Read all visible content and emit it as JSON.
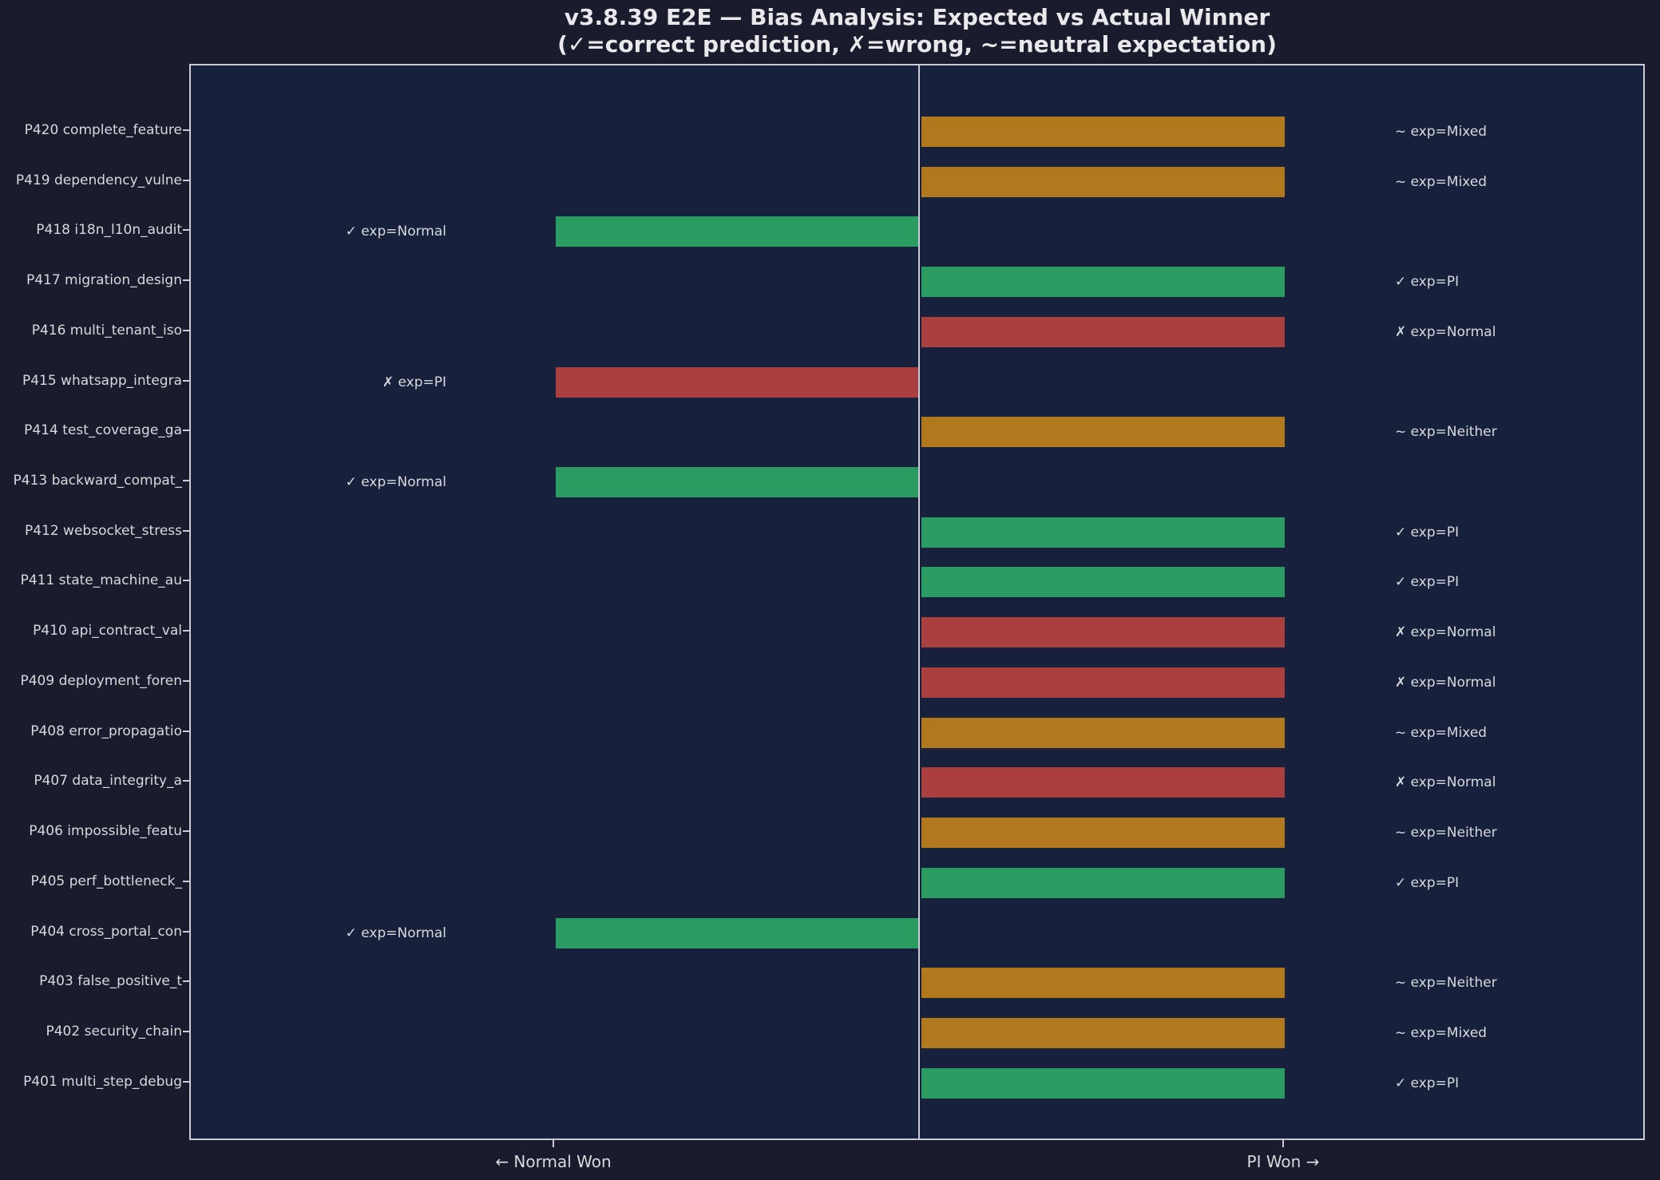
{
  "title": "v3.8.39 E2E — Bias Analysis: Expected vs Actual Winner",
  "subtitle": "(✓=correct prediction, ✗=wrong, ~=neutral expectation)",
  "colors": {
    "page_bg": "#1a1b2c",
    "plot_bg": "#18213c",
    "spine": "#c9ccd4",
    "text": "#d7d9de",
    "title_text": "#e9e9ec",
    "correct": "#2a9b61",
    "wrong": "#a93f3f",
    "neutral": "#b2781e"
  },
  "legend_note": {
    "correct_mark": "✓",
    "wrong_mark": "✗",
    "neutral_mark": "~"
  },
  "chart_data": {
    "type": "bar",
    "orientation": "horizontal-diverging",
    "xlabel_left": "← Normal Won",
    "xlabel_right": "PI Won →",
    "x_axis": {
      "center_value": 0,
      "left_tick_value": -1,
      "right_tick_value": 1,
      "bar_unit_length": 1
    },
    "grid": false,
    "legend_position": "none",
    "rows": [
      {
        "id": "P420",
        "label": "P420 complete_feature",
        "winner": "PI",
        "value": 1,
        "expected": "Mixed",
        "result": "neutral",
        "annotation": "~ exp=Mixed"
      },
      {
        "id": "P419",
        "label": "P419 dependency_vulne",
        "winner": "PI",
        "value": 1,
        "expected": "Mixed",
        "result": "neutral",
        "annotation": "~ exp=Mixed"
      },
      {
        "id": "P418",
        "label": "P418 i18n_l10n_audit",
        "winner": "Normal",
        "value": -1,
        "expected": "Normal",
        "result": "correct",
        "annotation": "✓ exp=Normal"
      },
      {
        "id": "P417",
        "label": "P417 migration_design",
        "winner": "PI",
        "value": 1,
        "expected": "PI",
        "result": "correct",
        "annotation": "✓ exp=PI"
      },
      {
        "id": "P416",
        "label": "P416 multi_tenant_iso",
        "winner": "PI",
        "value": 1,
        "expected": "Normal",
        "result": "wrong",
        "annotation": "✗ exp=Normal"
      },
      {
        "id": "P415",
        "label": "P415 whatsapp_integra",
        "winner": "Normal",
        "value": -1,
        "expected": "PI",
        "result": "wrong",
        "annotation": "✗ exp=PI"
      },
      {
        "id": "P414",
        "label": "P414 test_coverage_ga",
        "winner": "PI",
        "value": 1,
        "expected": "Neither",
        "result": "neutral",
        "annotation": "~ exp=Neither"
      },
      {
        "id": "P413",
        "label": "P413 backward_compat_",
        "winner": "Normal",
        "value": -1,
        "expected": "Normal",
        "result": "correct",
        "annotation": "✓ exp=Normal"
      },
      {
        "id": "P412",
        "label": "P412 websocket_stress",
        "winner": "PI",
        "value": 1,
        "expected": "PI",
        "result": "correct",
        "annotation": "✓ exp=PI"
      },
      {
        "id": "P411",
        "label": "P411 state_machine_au",
        "winner": "PI",
        "value": 1,
        "expected": "PI",
        "result": "correct",
        "annotation": "✓ exp=PI"
      },
      {
        "id": "P410",
        "label": "P410 api_contract_val",
        "winner": "PI",
        "value": 1,
        "expected": "Normal",
        "result": "wrong",
        "annotation": "✗ exp=Normal"
      },
      {
        "id": "P409",
        "label": "P409 deployment_foren",
        "winner": "PI",
        "value": 1,
        "expected": "Normal",
        "result": "wrong",
        "annotation": "✗ exp=Normal"
      },
      {
        "id": "P408",
        "label": "P408 error_propagatio",
        "winner": "PI",
        "value": 1,
        "expected": "Mixed",
        "result": "neutral",
        "annotation": "~ exp=Mixed"
      },
      {
        "id": "P407",
        "label": "P407 data_integrity_a",
        "winner": "PI",
        "value": 1,
        "expected": "Normal",
        "result": "wrong",
        "annotation": "✗ exp=Normal"
      },
      {
        "id": "P406",
        "label": "P406 impossible_featu",
        "winner": "PI",
        "value": 1,
        "expected": "Neither",
        "result": "neutral",
        "annotation": "~ exp=Neither"
      },
      {
        "id": "P405",
        "label": "P405 perf_bottleneck_",
        "winner": "PI",
        "value": 1,
        "expected": "PI",
        "result": "correct",
        "annotation": "✓ exp=PI"
      },
      {
        "id": "P404",
        "label": "P404 cross_portal_con",
        "winner": "Normal",
        "value": -1,
        "expected": "Normal",
        "result": "correct",
        "annotation": "✓ exp=Normal"
      },
      {
        "id": "P403",
        "label": "P403 false_positive_t",
        "winner": "PI",
        "value": 1,
        "expected": "Neither",
        "result": "neutral",
        "annotation": "~ exp=Neither"
      },
      {
        "id": "P402",
        "label": "P402 security_chain",
        "winner": "PI",
        "value": 1,
        "expected": "Mixed",
        "result": "neutral",
        "annotation": "~ exp=Mixed"
      },
      {
        "id": "P401",
        "label": "P401 multi_step_debug",
        "winner": "PI",
        "value": 1,
        "expected": "PI",
        "result": "correct",
        "annotation": "✓ exp=PI"
      }
    ]
  }
}
